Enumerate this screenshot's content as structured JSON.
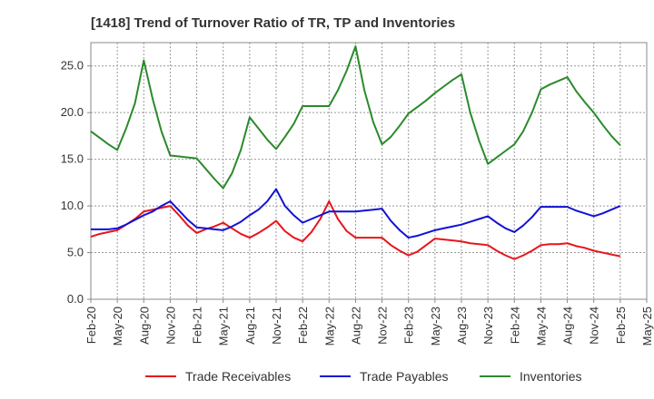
{
  "chart_data": {
    "type": "line",
    "title": "[1418]  Trend of Turnover Ratio of TR, TP and Inventories",
    "xlabel": "",
    "ylabel": "",
    "ylim": [
      0,
      27.5
    ],
    "yticks": [
      "0.0",
      "5.0",
      "10.0",
      "15.0",
      "20.0",
      "25.0"
    ],
    "ytick_values": [
      0,
      5,
      10,
      15,
      20,
      25
    ],
    "xtick_labels": [
      "Feb-20",
      "May-20",
      "Aug-20",
      "Nov-20",
      "Feb-21",
      "May-21",
      "Aug-21",
      "Nov-21",
      "Feb-22",
      "May-22",
      "Aug-22",
      "Nov-22",
      "Feb-23",
      "May-23",
      "Aug-23",
      "Nov-23",
      "Feb-24",
      "May-24",
      "Aug-24",
      "Nov-24",
      "Feb-25",
      "May-25"
    ],
    "grid": true,
    "legend_position": "bottom",
    "x": [
      "Feb-20",
      "Mar-20",
      "Apr-20",
      "May-20",
      "Jun-20",
      "Jul-20",
      "Aug-20",
      "Sep-20",
      "Oct-20",
      "Nov-20",
      "Dec-20",
      "Jan-21",
      "Feb-21",
      "Mar-21",
      "Apr-21",
      "May-21",
      "Jun-21",
      "Jul-21",
      "Aug-21",
      "Sep-21",
      "Oct-21",
      "Nov-21",
      "Dec-21",
      "Jan-22",
      "Feb-22",
      "Mar-22",
      "Apr-22",
      "May-22",
      "Jun-22",
      "Jul-22",
      "Aug-22",
      "Sep-22",
      "Oct-22",
      "Nov-22",
      "Dec-22",
      "Jan-23",
      "Feb-23",
      "Mar-23",
      "Apr-23",
      "May-23",
      "Jun-23",
      "Jul-23",
      "Aug-23",
      "Sep-23",
      "Oct-23",
      "Nov-23",
      "Dec-23",
      "Jan-24",
      "Feb-24",
      "Mar-24",
      "Apr-24",
      "May-24",
      "Jun-24",
      "Jul-24",
      "Aug-24",
      "Sep-24",
      "Oct-24",
      "Nov-24",
      "Dec-24",
      "Jan-25",
      "Feb-25"
    ],
    "series": [
      {
        "name": "Trade Receivables",
        "color": "#e8141b",
        "values": [
          6.7,
          7.0,
          7.2,
          7.4,
          8.0,
          8.6,
          9.4,
          9.6,
          9.8,
          10.0,
          9.0,
          7.9,
          7.1,
          7.5,
          7.8,
          8.2,
          7.6,
          7.0,
          6.6,
          7.1,
          7.7,
          8.4,
          7.3,
          6.6,
          6.2,
          7.2,
          8.6,
          10.5,
          8.6,
          7.3,
          6.6,
          6.6,
          6.6,
          6.6,
          5.8,
          5.2,
          4.7,
          5.1,
          5.8,
          6.5,
          6.4,
          6.3,
          6.2,
          6.0,
          5.9,
          5.8,
          5.2,
          4.7,
          4.3,
          4.7,
          5.2,
          5.8,
          5.9,
          5.9,
          6.0,
          5.7,
          5.5,
          5.2,
          5.0,
          4.8,
          4.6
        ]
      },
      {
        "name": "Trade Payables",
        "color": "#1111d6",
        "values": [
          7.5,
          7.5,
          7.5,
          7.6,
          8.0,
          8.5,
          9.0,
          9.4,
          10.0,
          10.5,
          9.5,
          8.5,
          7.7,
          7.6,
          7.5,
          7.4,
          7.8,
          8.3,
          9.0,
          9.6,
          10.5,
          11.8,
          10.0,
          9.0,
          8.2,
          8.6,
          9.0,
          9.4,
          9.4,
          9.4,
          9.4,
          9.5,
          9.6,
          9.7,
          8.4,
          7.4,
          6.6,
          6.8,
          7.1,
          7.4,
          7.6,
          7.8,
          8.0,
          8.3,
          8.6,
          8.9,
          8.2,
          7.6,
          7.2,
          7.9,
          8.8,
          9.9,
          9.9,
          9.9,
          9.9,
          9.5,
          9.2,
          8.9,
          9.2,
          9.6,
          10.0
        ]
      },
      {
        "name": "Inventories",
        "color": "#2b8a2b",
        "values": [
          18.0,
          17.3,
          16.6,
          16.0,
          18.3,
          21.0,
          25.6,
          21.5,
          18.0,
          15.4,
          15.3,
          15.2,
          15.1,
          14.0,
          12.9,
          11.9,
          13.5,
          16.0,
          19.5,
          18.3,
          17.1,
          16.1,
          17.4,
          18.8,
          20.7,
          20.7,
          20.7,
          20.7,
          22.4,
          24.5,
          27.1,
          22.4,
          19.0,
          16.6,
          17.4,
          18.6,
          19.9,
          20.6,
          21.3,
          22.1,
          22.8,
          23.5,
          24.1,
          20.0,
          17.0,
          14.5,
          15.2,
          15.9,
          16.6,
          18.0,
          20.0,
          22.5,
          23.0,
          23.4,
          23.8,
          22.3,
          21.1,
          20.0,
          18.7,
          17.5,
          16.5
        ]
      }
    ]
  }
}
